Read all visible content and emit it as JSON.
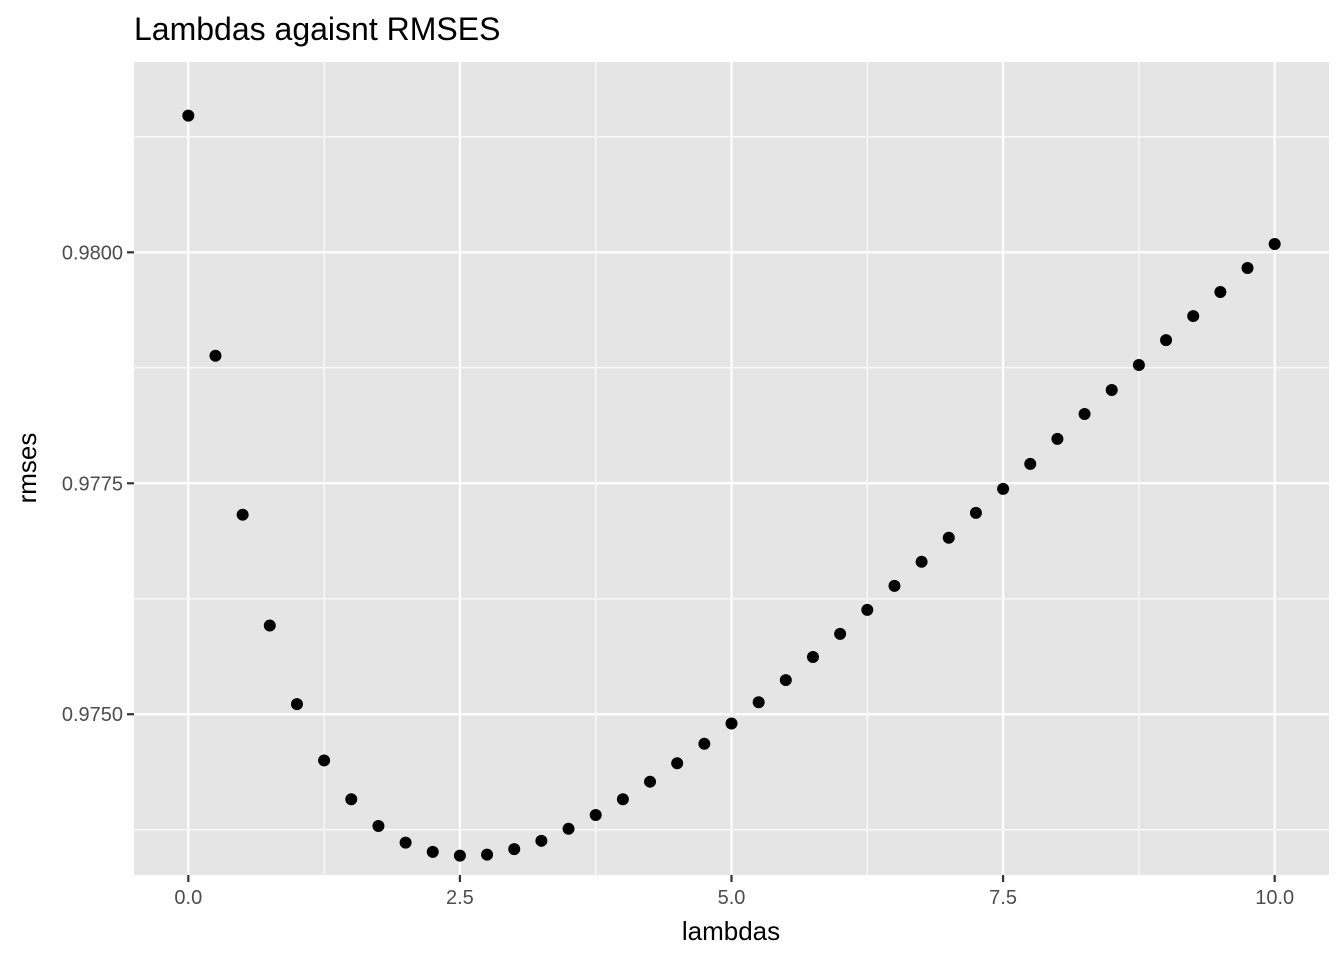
{
  "chart_data": {
    "type": "scatter",
    "title": "Lambdas agaisnt RMSES",
    "xlabel": "lambdas",
    "ylabel": "rmses",
    "xlim": [
      -0.5,
      10.5
    ],
    "ylim": [
      0.97326,
      0.98206
    ],
    "x_ticks": [
      0.0,
      2.5,
      5.0,
      7.5,
      10.0
    ],
    "x_tick_labels": [
      "0.0",
      "2.5",
      "5.0",
      "7.5",
      "10.0"
    ],
    "y_ticks": [
      0.975,
      0.9775,
      0.98
    ],
    "y_tick_labels": [
      "0.9750",
      "0.9775",
      "0.9800"
    ],
    "grid": true,
    "legend": "none",
    "colors": {
      "panel": "#e5e5e5",
      "grid": "#ffffff",
      "point": "#000000",
      "tick": "#4d4d4d"
    },
    "x": [
      0.0,
      0.25,
      0.5,
      0.75,
      1.0,
      1.25,
      1.5,
      1.75,
      2.0,
      2.25,
      2.5,
      2.75,
      3.0,
      3.25,
      3.5,
      3.75,
      4.0,
      4.25,
      4.5,
      4.75,
      5.0,
      5.25,
      5.5,
      5.75,
      6.0,
      6.25,
      6.5,
      6.75,
      7.0,
      7.25,
      7.5,
      7.75,
      8.0,
      8.25,
      8.5,
      8.75,
      9.0,
      9.25,
      9.5,
      9.75,
      10.0
    ],
    "y": [
      0.98148,
      0.97888,
      0.97716,
      0.97596,
      0.97511,
      0.9745,
      0.97408,
      0.97379,
      0.97361,
      0.97351,
      0.97347,
      0.97348,
      0.97354,
      0.97363,
      0.97376,
      0.97391,
      0.97408,
      0.97427,
      0.97447,
      0.97468,
      0.9749,
      0.97513,
      0.97537,
      0.97562,
      0.97587,
      0.97613,
      0.97639,
      0.97665,
      0.97691,
      0.97718,
      0.97744,
      0.97771,
      0.97798,
      0.97825,
      0.97851,
      0.97878,
      0.97905,
      0.97931,
      0.97957,
      0.97983,
      0.98009
    ]
  }
}
